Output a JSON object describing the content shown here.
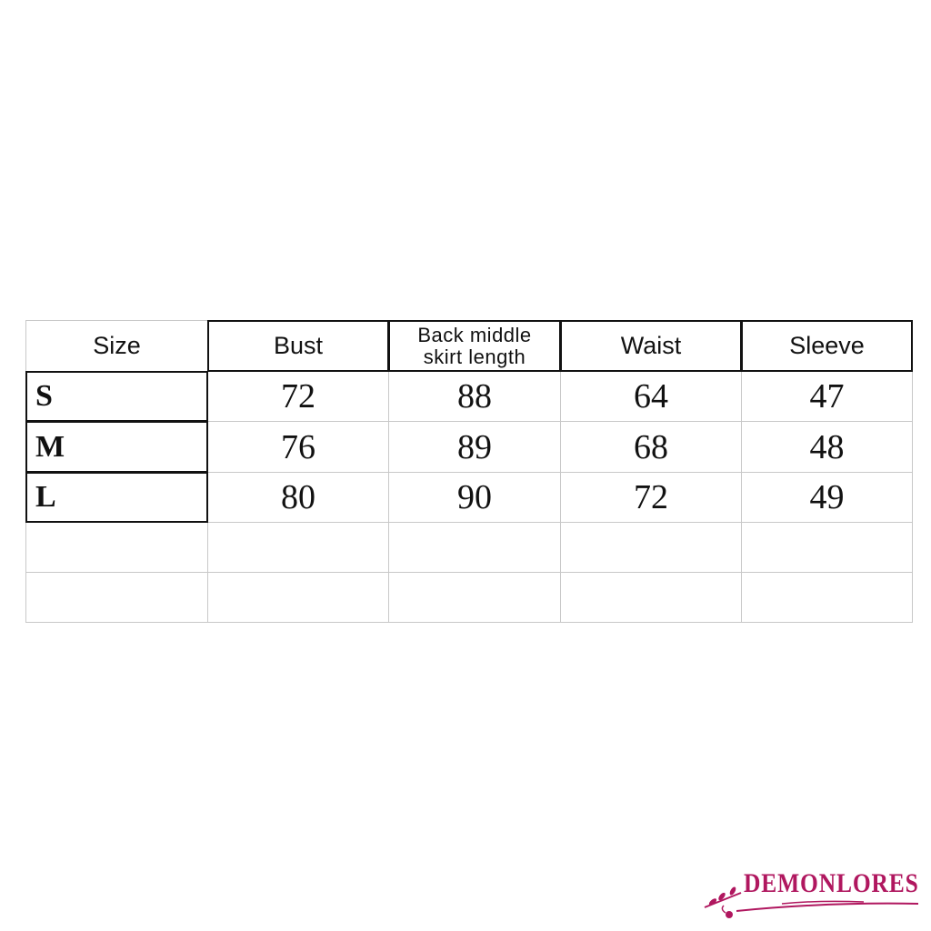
{
  "table": {
    "headers": [
      "Size",
      "Bust",
      "Back middle skirt length",
      "Waist",
      "Sleeve"
    ],
    "header_lines": [
      "Back middle",
      "skirt length"
    ],
    "rows": [
      {
        "size": "S",
        "values": [
          "72",
          "88",
          "64",
          "47"
        ]
      },
      {
        "size": "M",
        "values": [
          "76",
          "89",
          "68",
          "48"
        ]
      },
      {
        "size": "L",
        "values": [
          "80",
          "90",
          "72",
          "49"
        ]
      }
    ],
    "empty_rows": 2
  },
  "logo": {
    "text": "DEMONLORES",
    "color": "#b0175f"
  }
}
